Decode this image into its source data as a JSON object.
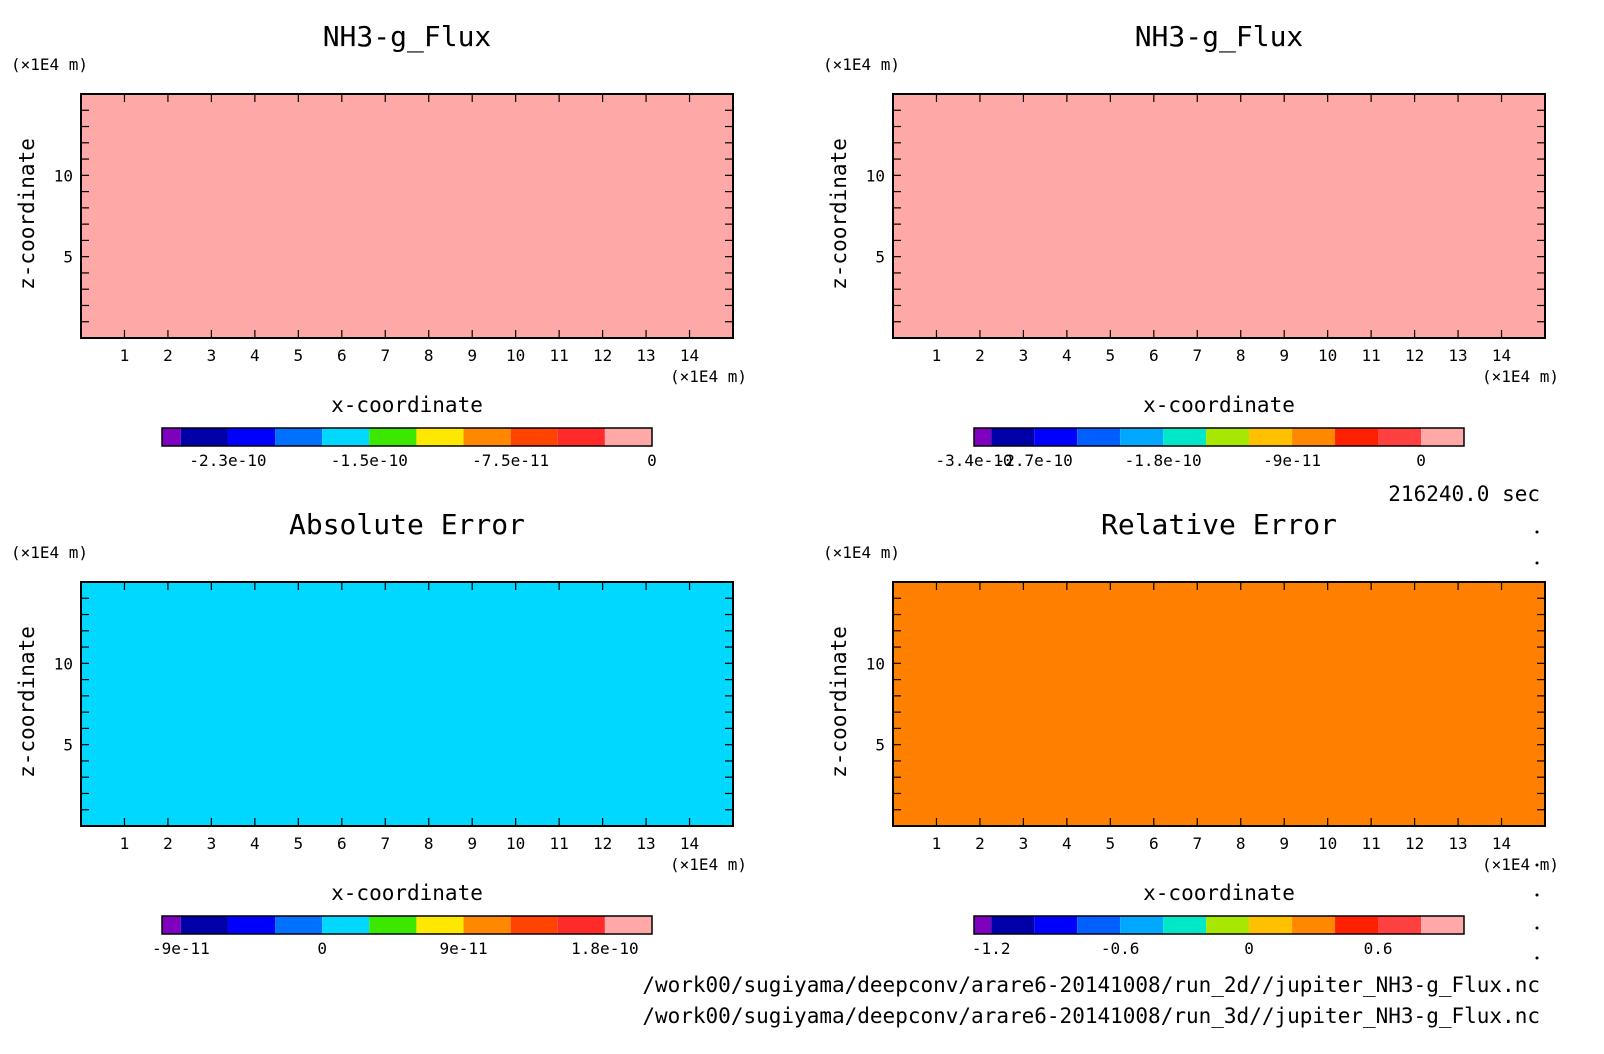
{
  "time_label": "216240.0 sec",
  "footer": {
    "line1": "/work00/sugiyama/deepconv/arare6-20141008/run_2d//jupiter_NH3-g_Flux.nc",
    "line2": "/work00/sugiyama/deepconv/arare6-20141008/run_3d//jupiter_NH3-g_Flux.nc"
  },
  "chart_data": [
    {
      "type": "heatmap",
      "title": "NH3-g_Flux",
      "xlabel": "x-coordinate",
      "ylabel": "z-coordinate",
      "x_unit": "(×1E4 m)",
      "y_unit": "(×1E4 m)",
      "xlim": [
        0,
        15
      ],
      "ylim": [
        0,
        15
      ],
      "x_ticks": [
        1,
        2,
        3,
        4,
        5,
        6,
        7,
        8,
        9,
        10,
        11,
        12,
        13,
        14
      ],
      "y_ticks": [
        5,
        10
      ],
      "fill_color": "#ffa8a8",
      "colorbar": {
        "colors": [
          "#7f00bf",
          "#0000a8",
          "#0000ff",
          "#0070ff",
          "#00d8ff",
          "#3ce800",
          "#ffe800",
          "#ff8800",
          "#ff4400",
          "#ff2a2a",
          "#ffa8a8"
        ],
        "ticks": [
          {
            "label": "-2.3e-10",
            "pos": 2
          },
          {
            "label": "-1.5e-10",
            "pos": 5
          },
          {
            "label": "-7.5e-11",
            "pos": 8
          },
          {
            "label": "0",
            "pos": 11
          }
        ]
      }
    },
    {
      "type": "heatmap",
      "title": "NH3-g_Flux",
      "xlabel": "x-coordinate",
      "ylabel": "z-coordinate",
      "x_unit": "(×1E4 m)",
      "y_unit": "(×1E4 m)",
      "xlim": [
        0,
        15
      ],
      "ylim": [
        0,
        15
      ],
      "x_ticks": [
        1,
        2,
        3,
        4,
        5,
        6,
        7,
        8,
        9,
        10,
        11,
        12,
        13,
        14
      ],
      "y_ticks": [
        5,
        10
      ],
      "fill_color": "#ffa8a8",
      "colorbar": {
        "colors": [
          "#7f00bf",
          "#0000a8",
          "#0000ff",
          "#0060ff",
          "#00a8ff",
          "#00e8c8",
          "#a8e800",
          "#ffc000",
          "#ff8800",
          "#ff2000",
          "#ff4040",
          "#ffa8a8"
        ],
        "ticks": [
          {
            "label": "-3.4e-10",
            "pos": 0
          },
          {
            "label": "-2.7e-10",
            "pos": 2
          },
          {
            "label": "-1.8e-10",
            "pos": 5
          },
          {
            "label": "-9e-11",
            "pos": 8
          },
          {
            "label": "0",
            "pos": 11
          }
        ]
      }
    },
    {
      "type": "heatmap",
      "title": "Absolute Error",
      "xlabel": "x-coordinate",
      "ylabel": "z-coordinate",
      "x_unit": "(×1E4 m)",
      "y_unit": "(×1E4 m)",
      "xlim": [
        0,
        15
      ],
      "ylim": [
        0,
        15
      ],
      "x_ticks": [
        1,
        2,
        3,
        4,
        5,
        6,
        7,
        8,
        9,
        10,
        11,
        12,
        13,
        14
      ],
      "y_ticks": [
        5,
        10
      ],
      "fill_color": "#00d8ff",
      "colorbar": {
        "colors": [
          "#7f00bf",
          "#0000a8",
          "#0000ff",
          "#0070ff",
          "#00d8ff",
          "#3ce800",
          "#ffe800",
          "#ff8800",
          "#ff4400",
          "#ff2a2a",
          "#ffa8a8"
        ],
        "ticks": [
          {
            "label": "-9e-11",
            "pos": 1
          },
          {
            "label": "0",
            "pos": 4
          },
          {
            "label": "9e-11",
            "pos": 7
          },
          {
            "label": "1.8e-10",
            "pos": 10
          }
        ]
      }
    },
    {
      "type": "heatmap",
      "title": "Relative Error",
      "xlabel": "x-coordinate",
      "ylabel": "z-coordinate",
      "x_unit": "(×1E4 m)",
      "y_unit": "(×1E4 m)",
      "xlim": [
        0,
        15
      ],
      "ylim": [
        0,
        15
      ],
      "x_ticks": [
        1,
        2,
        3,
        4,
        5,
        6,
        7,
        8,
        9,
        10,
        11,
        12,
        13,
        14
      ],
      "y_ticks": [
        5,
        10
      ],
      "fill_color": "#ff8000",
      "colorbar": {
        "colors": [
          "#7f00bf",
          "#0000a8",
          "#0000ff",
          "#0060ff",
          "#00a8ff",
          "#00e8c8",
          "#a8e800",
          "#ffc000",
          "#ff8800",
          "#ff2000",
          "#ff4040",
          "#ffa8a8"
        ],
        "ticks": [
          {
            "label": "-1.2",
            "pos": 1
          },
          {
            "label": "-0.6",
            "pos": 4
          },
          {
            "label": "0",
            "pos": 7
          },
          {
            "label": "0.6",
            "pos": 10
          }
        ]
      }
    }
  ]
}
